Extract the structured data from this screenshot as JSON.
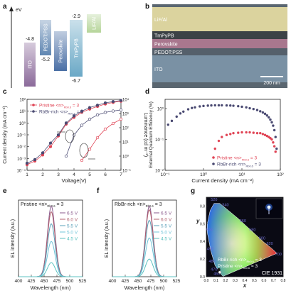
{
  "panel_letters": [
    "a",
    "b",
    "c",
    "d",
    "e",
    "f",
    "g"
  ],
  "panel_a": {
    "axis_label": "eV",
    "layers": [
      {
        "name": "ITO",
        "top": "-4.8",
        "bottom": "",
        "color": "#8b6a9a"
      },
      {
        "name": "PEDOT:PSS",
        "top": "",
        "bottom": "-5.2",
        "color": "#5f86b2"
      },
      {
        "name": "Perovskite",
        "top": "",
        "bottom": "",
        "color": "#4a6fa5"
      },
      {
        "name": "TmPyPB",
        "top": "-2.9",
        "bottom": "-6.7",
        "color": "#6aa8c6"
      },
      {
        "name": "LiF/Al",
        "top": "",
        "bottom": "",
        "color": "#b6d59a"
      }
    ]
  },
  "panel_b": {
    "layers": [
      "LiF/Al",
      "TmPyPB",
      "Perovskite",
      "PEDOT:PSS",
      "ITO"
    ],
    "scale_bar": "200 nm"
  },
  "chart_data": [
    {
      "type": "line",
      "panel": "c",
      "xlabel": "Voltage(V)",
      "ylabel": "Current density (mA cm⁻²)",
      "ylabel2": "Luminance (cd m⁻²)",
      "xlim": [
        1,
        7
      ],
      "ylim": [
        0.0001,
        100.0
      ],
      "ylim2": [
        0.1,
        10000.0
      ],
      "yscale": "log",
      "xticks": [
        "1",
        "2",
        "3",
        "4",
        "5",
        "6",
        "7"
      ],
      "yticks": [
        "10⁻⁴",
        "10⁻³",
        "10⁻²",
        "10⁻¹",
        "10⁰",
        "10¹",
        "10²"
      ],
      "yticks2": [
        "10⁻¹",
        "10⁰",
        "10¹",
        "10²",
        "10³",
        "10⁴"
      ],
      "legend": "top-left",
      "x": [
        1,
        1.5,
        2,
        2.5,
        3,
        3.5,
        4,
        4.5,
        5,
        5.5,
        6,
        6.5,
        7
      ],
      "series": [
        {
          "name": "Pristine <n>",
          "sub": "Rb0.6",
          "suffix": " = 3",
          "color": "#e04455",
          "axis": "left",
          "marker": "filled",
          "values": [
            0.0003,
            0.0006,
            0.002,
            0.01,
            0.08,
            0.8,
            3,
            8,
            15,
            25,
            40,
            55,
            70
          ]
        },
        {
          "name": "RbBr-rich <n>",
          "sub": "Rb0.6",
          "suffix": " = 3",
          "color": "#4a4a72",
          "axis": "left",
          "marker": "filled",
          "values": [
            0.0004,
            0.0008,
            0.003,
            0.02,
            0.1,
            1,
            4,
            10,
            20,
            32,
            50,
            65,
            80
          ]
        },
        {
          "name": "Pristine L",
          "color": "#e04455",
          "axis": "right",
          "marker": "open",
          "values": [
            null,
            null,
            null,
            null,
            null,
            null,
            null,
            0.5,
            3,
            20,
            80,
            200,
            400
          ]
        },
        {
          "name": "RbBr-rich L",
          "color": "#4a4a72",
          "axis": "right",
          "marker": "open",
          "values": [
            null,
            null,
            null,
            null,
            null,
            1,
            30,
            150,
            400,
            800,
            1200,
            1500,
            1800
          ]
        }
      ]
    },
    {
      "type": "scatter",
      "panel": "d",
      "xlabel": "Current density (mA cm⁻²)",
      "ylabel": "External Quantum Efficiency (%)",
      "xscale": "log",
      "yscale": "log",
      "xlim": [
        0.1,
        100
      ],
      "ylim": [
        0.01,
        2
      ],
      "xticks": [
        "10⁻¹",
        "10⁰",
        "10¹",
        "10²"
      ],
      "yticks": [
        "10⁻²",
        "10⁻¹",
        "10⁰"
      ],
      "legend": "bottom-right",
      "series": [
        {
          "name": "Pristine <n>",
          "sub": "Rb0.6",
          "suffix": " = 3",
          "color": "#e04455",
          "x": [
            2,
            2.5,
            3,
            4,
            5,
            6,
            8,
            10,
            13,
            16,
            20,
            25,
            30,
            35,
            40,
            45,
            50,
            55,
            60,
            65,
            70,
            75
          ],
          "values": [
            0.05,
            0.09,
            0.12,
            0.14,
            0.15,
            0.16,
            0.165,
            0.17,
            0.17,
            0.17,
            0.165,
            0.16,
            0.16,
            0.15,
            0.14,
            0.13,
            0.12,
            0.11,
            0.1,
            0.08,
            0.06,
            0.04
          ]
        },
        {
          "name": "RbBr-rich <n>",
          "sub": "Rb0.6",
          "suffix": " = 3",
          "color": "#4a4a72",
          "x": [
            0.12,
            0.15,
            0.2,
            0.25,
            0.3,
            0.4,
            0.5,
            0.6,
            0.8,
            1,
            1.3,
            1.6,
            2,
            2.5,
            3,
            4,
            5,
            6,
            8,
            10,
            13,
            16,
            20,
            25,
            30,
            35,
            40,
            45,
            50,
            55,
            60,
            65,
            70,
            75,
            80
          ],
          "values": [
            0.3,
            0.4,
            0.55,
            0.7,
            0.8,
            0.95,
            1.05,
            1.1,
            1.18,
            1.22,
            1.25,
            1.27,
            1.28,
            1.28,
            1.28,
            1.27,
            1.26,
            1.24,
            1.2,
            1.15,
            1.1,
            1.03,
            0.97,
            0.9,
            0.82,
            0.75,
            0.68,
            0.6,
            0.52,
            0.44,
            0.36,
            0.28,
            0.2,
            0.12,
            0.05
          ]
        }
      ]
    },
    {
      "type": "line",
      "panel": "e",
      "title": "Pristine <n>",
      "title_sub": "Rb0.6",
      "title_suffix": " = 3",
      "xlabel": "Wavelength (nm)",
      "ylabel": "EL intensity (a.u.)",
      "xlim": [
        400,
        525
      ],
      "xticks": [
        "400",
        "425",
        "450",
        "475",
        "500",
        "525"
      ],
      "peak": 464,
      "series": [
        {
          "name": "6.5 V",
          "color": "#8a5a8c",
          "amplitude": 1.0
        },
        {
          "name": "6.0 V",
          "color": "#b0606e",
          "amplitude": 0.92
        },
        {
          "name": "5.5 V",
          "color": "#5aa0b8",
          "amplitude": 0.75
        },
        {
          "name": "5.0 V",
          "color": "#6fc4d8",
          "amplitude": 0.5
        },
        {
          "name": "4.5 V",
          "color": "#5cc2c0",
          "amplitude": 0.2
        }
      ]
    },
    {
      "type": "line",
      "panel": "f",
      "title": "RbBr-rich <n>",
      "title_sub": "Rb0.6",
      "title_suffix": " = 3",
      "xlabel": "Wavelength (nm)",
      "ylabel": "EL intensity (a.u.)",
      "xlim": [
        400,
        525
      ],
      "xticks": [
        "400",
        "425",
        "450",
        "475",
        "500",
        "525"
      ],
      "peak": 472,
      "series": [
        {
          "name": "6.5 V",
          "color": "#8a5a8c",
          "amplitude": 1.0
        },
        {
          "name": "6.0 V",
          "color": "#b0606e",
          "amplitude": 0.95
        },
        {
          "name": "5.5 V",
          "color": "#5aa0b8",
          "amplitude": 0.8
        },
        {
          "name": "5.0 V",
          "color": "#6fc4d8",
          "amplitude": 0.55
        },
        {
          "name": "4.5 V",
          "color": "#5cc2c0",
          "amplitude": 0.25
        }
      ]
    },
    {
      "type": "scatter",
      "panel": "g",
      "title": "CIE 1931",
      "xlabel": "x",
      "ylabel": "y",
      "xlim": [
        0,
        0.8
      ],
      "ylim": [
        0,
        0.9
      ],
      "xticks": [
        "0.0",
        "0.1",
        "0.2",
        "0.3",
        "0.4",
        "0.5",
        "0.6",
        "0.7",
        "0.8"
      ],
      "yticks": [
        "0.0",
        "0.2",
        "0.4",
        "0.6",
        "0.8"
      ],
      "wavelength_labels": [
        "520",
        "540",
        "560",
        "580",
        "600",
        "620",
        "700",
        "500",
        "490",
        "480",
        "470",
        "460"
      ],
      "series": [
        {
          "name": "RbBr-rich <n>",
          "sub": "Rb0.6",
          "suffix": " = 3",
          "color": "#1a1a1a",
          "x": [
            0.13
          ],
          "values": [
            0.08
          ]
        },
        {
          "name": "Pristine <n>",
          "sub": "Rb0.6",
          "suffix": " = 3",
          "color": "#ffffff",
          "x": [
            0.14
          ],
          "values": [
            0.05
          ]
        }
      ]
    }
  ]
}
